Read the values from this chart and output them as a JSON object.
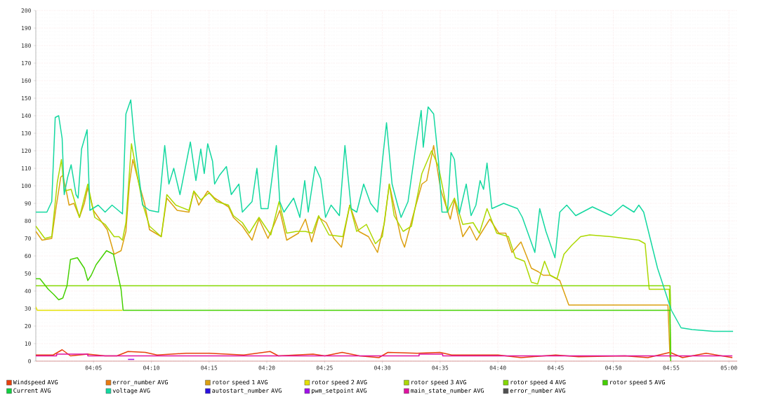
{
  "chart_data": {
    "type": "line",
    "xlim": [
      4.0,
      5.012
    ],
    "ylim": [
      0,
      200
    ],
    "xticks": [
      {
        "value": 4.0833,
        "label": "04:05"
      },
      {
        "value": 4.1667,
        "label": "04:10"
      },
      {
        "value": 4.25,
        "label": "04:15"
      },
      {
        "value": 4.3333,
        "label": "04:20"
      },
      {
        "value": 4.4167,
        "label": "04:25"
      },
      {
        "value": 4.5,
        "label": "04:30"
      },
      {
        "value": 4.5833,
        "label": "04:35"
      },
      {
        "value": 4.6667,
        "label": "04:40"
      },
      {
        "value": 4.75,
        "label": "04:45"
      },
      {
        "value": 4.8333,
        "label": "04:50"
      },
      {
        "value": 4.9167,
        "label": "04:55"
      },
      {
        "value": 5.0,
        "label": "05:00"
      }
    ],
    "yticks": [
      0,
      10,
      20,
      30,
      40,
      50,
      60,
      70,
      80,
      90,
      100,
      110,
      120,
      130,
      140,
      150,
      160,
      170,
      180,
      190,
      200
    ],
    "grid": true,
    "legend": "bottom",
    "marker": "none",
    "line_style": "solid",
    "series": [
      {
        "name": "Windspeed AVG",
        "color": "#e8400c",
        "x": [
          4.0,
          4.025,
          4.038,
          4.05,
          4.075,
          4.1,
          4.117,
          4.133,
          4.158,
          4.175,
          4.217,
          4.25,
          4.3,
          4.338,
          4.35,
          4.4,
          4.417,
          4.442,
          4.467,
          4.495,
          4.508,
          4.55,
          4.583,
          4.6,
          4.667,
          4.7,
          4.75,
          4.783,
          4.85,
          4.883,
          4.915,
          4.933,
          4.967,
          5.005
        ],
        "values": [
          3.5,
          3.5,
          6.5,
          3,
          4,
          3,
          3,
          5.5,
          5,
          3.5,
          4.5,
          4.5,
          3.5,
          5.5,
          3,
          4,
          3,
          5,
          3,
          2,
          5,
          4.5,
          5,
          3.5,
          3.5,
          2,
          3.5,
          2.5,
          3,
          2,
          5,
          2,
          4.5,
          2
        ]
      },
      {
        "name": "error_number AVG",
        "color": "#ea7a10"
      },
      {
        "name": "rotor speed 1 AVG",
        "color": "#dca010",
        "x": [
          4.0,
          4.009,
          4.023,
          4.029,
          4.036,
          4.039,
          4.045,
          4.048,
          4.055,
          4.063,
          4.07,
          4.075,
          4.083,
          4.103,
          4.113,
          4.123,
          4.13,
          4.135,
          4.14,
          4.149,
          4.157,
          4.164,
          4.181,
          4.189,
          4.204,
          4.221,
          4.228,
          4.235,
          4.248,
          4.258,
          4.278,
          4.285,
          4.298,
          4.312,
          4.322,
          4.335,
          4.345,
          4.352,
          4.362,
          4.379,
          4.389,
          4.398,
          4.408,
          4.419,
          4.43,
          4.441,
          4.453,
          4.466,
          4.48,
          4.493,
          4.503,
          4.51,
          4.527,
          4.532,
          4.547,
          4.557,
          4.564,
          4.574,
          4.584,
          4.598,
          4.604,
          4.616,
          4.626,
          4.636,
          4.655,
          4.668,
          4.678,
          4.687,
          4.7,
          4.715,
          4.725,
          4.732,
          4.742,
          4.756,
          4.769,
          4.912,
          4.915
        ],
        "values": [
          74,
          69,
          70,
          87,
          105,
          106,
          95,
          89,
          90,
          82,
          90,
          99,
          86,
          75,
          61,
          63,
          74,
          101,
          115,
          101,
          90,
          75,
          71,
          93,
          86,
          85,
          97,
          89,
          97,
          93,
          88,
          82,
          77,
          69,
          81,
          70,
          79,
          86,
          69,
          73,
          81,
          68,
          82,
          79,
          70,
          65,
          89,
          74,
          71,
          62,
          79,
          101,
          70,
          65,
          87,
          101,
          103,
          123,
          98,
          81,
          92,
          71,
          77,
          69,
          81,
          73,
          73,
          62,
          68,
          53,
          51,
          49,
          49,
          46,
          32,
          32,
          2
        ]
      },
      {
        "name": "rotor speed 2 AVG",
        "color": "#e4e000",
        "x": [
          4.0,
          4.002,
          4.125
        ],
        "values": [
          31,
          29,
          29
        ]
      },
      {
        "name": "rotor speed 3 AVG",
        "color": "#acd800",
        "x": [
          4.0,
          4.013,
          4.023,
          4.031,
          4.037,
          4.041,
          4.051,
          4.063,
          4.075,
          4.085,
          4.1,
          4.113,
          4.12,
          4.125,
          4.13,
          4.138,
          4.144,
          4.154,
          4.164,
          4.181,
          4.189,
          4.202,
          4.221,
          4.228,
          4.238,
          4.25,
          4.261,
          4.278,
          4.285,
          4.298,
          4.308,
          4.322,
          4.339,
          4.351,
          4.362,
          4.376,
          4.389,
          4.399,
          4.408,
          4.423,
          4.443,
          4.453,
          4.463,
          4.477,
          4.49,
          4.5,
          4.51,
          4.517,
          4.53,
          4.542,
          4.557,
          4.571,
          4.581,
          4.594,
          4.604,
          4.616,
          4.631,
          4.64,
          4.651,
          4.665,
          4.682,
          4.692,
          4.705,
          4.715,
          4.724,
          4.734,
          4.742,
          4.752,
          4.762,
          4.773,
          4.786,
          4.799,
          4.83,
          4.87,
          4.879,
          4.885,
          4.914,
          4.916
        ],
        "values": [
          77,
          70,
          71,
          102,
          115,
          97,
          98,
          82,
          101,
          82,
          78,
          71,
          71,
          69,
          79,
          124,
          111,
          90,
          77,
          71,
          95,
          89,
          86,
          97,
          92,
          96,
          91,
          89,
          83,
          79,
          73,
          82,
          72,
          91,
          73,
          74,
          74,
          73,
          83,
          72,
          71,
          89,
          74,
          78,
          67,
          71,
          101,
          83,
          74,
          77,
          107,
          120,
          111,
          85,
          93,
          78,
          79,
          73,
          87,
          73,
          71,
          59,
          57,
          45,
          44,
          57,
          49,
          47,
          61,
          66,
          71,
          72,
          71,
          69,
          67,
          41,
          41,
          2
        ]
      },
      {
        "name": "rotor speed 4 AVG",
        "color": "#84d800",
        "x": [
          4.0,
          4.915,
          4.916
        ],
        "values": [
          43,
          43,
          29
        ]
      },
      {
        "name": "rotor speed 5 AVG",
        "color": "#44d000",
        "x": [
          4.0,
          4.006,
          4.018,
          4.026,
          4.033,
          4.039,
          4.045,
          4.05,
          4.06,
          4.07,
          4.075,
          4.08,
          4.087,
          4.102,
          4.112,
          4.118,
          4.123,
          4.126,
          4.915,
          4.916
        ],
        "values": [
          47,
          47,
          41,
          38,
          35,
          36,
          43,
          58,
          59,
          53,
          46,
          49,
          55,
          63,
          61,
          50,
          41,
          29,
          29,
          0
        ]
      },
      {
        "name": "Current AVG",
        "color": "#10d040"
      },
      {
        "name": "voltage AVG",
        "color": "#14d8a0",
        "x": [
          4.0,
          4.016,
          4.023,
          4.028,
          4.033,
          4.038,
          4.041,
          4.046,
          4.051,
          4.058,
          4.061,
          4.066,
          4.074,
          4.078,
          4.09,
          4.1,
          4.11,
          4.125,
          4.13,
          4.137,
          4.142,
          4.154,
          4.164,
          4.177,
          4.186,
          4.192,
          4.199,
          4.208,
          4.223,
          4.231,
          4.238,
          4.243,
          4.248,
          4.255,
          4.258,
          4.265,
          4.275,
          4.282,
          4.293,
          4.298,
          4.312,
          4.319,
          4.325,
          4.335,
          4.347,
          4.352,
          4.358,
          4.372,
          4.381,
          4.388,
          4.393,
          4.403,
          4.411,
          4.418,
          4.426,
          4.438,
          4.446,
          4.455,
          4.463,
          4.473,
          4.483,
          4.493,
          4.5,
          4.506,
          4.514,
          4.522,
          4.527,
          4.537,
          4.547,
          4.556,
          4.559,
          4.566,
          4.574,
          4.581,
          4.586,
          4.594,
          4.599,
          4.604,
          4.611,
          4.621,
          4.628,
          4.635,
          4.641,
          4.646,
          4.651,
          4.658,
          4.675,
          4.695,
          4.702,
          4.72,
          4.727,
          4.736,
          4.749,
          4.756,
          4.766,
          4.779,
          4.803,
          4.83,
          4.847,
          4.863,
          4.87,
          4.877,
          4.897,
          4.917,
          4.931,
          4.947,
          4.978,
          5.006
        ],
        "values": [
          85,
          85,
          91,
          139,
          140,
          127,
          95,
          105,
          112,
          95,
          93,
          121,
          132,
          86,
          89,
          85,
          89,
          84,
          141,
          149,
          127,
          89,
          86,
          85,
          123,
          101,
          110,
          95,
          125,
          103,
          121,
          107,
          124,
          114,
          101,
          106,
          111,
          95,
          101,
          85,
          91,
          110,
          87,
          87,
          123,
          91,
          85,
          93,
          82,
          103,
          85,
          111,
          104,
          82,
          89,
          83,
          123,
          87,
          85,
          101,
          90,
          85,
          114,
          136,
          101,
          89,
          82,
          91,
          119,
          143,
          122,
          145,
          141,
          114,
          85,
          85,
          119,
          115,
          84,
          101,
          83,
          89,
          103,
          98,
          113,
          87,
          90,
          87,
          82,
          62,
          87,
          74,
          59,
          85,
          89,
          83,
          88,
          83,
          89,
          85,
          89,
          85,
          53,
          29,
          19,
          18,
          17,
          17
        ]
      },
      {
        "name": "autostart_number AVG",
        "color": "#2a10e0"
      },
      {
        "name": "pwm_setpoint AVG",
        "color": "#a010e8",
        "x": [
          4.133,
          4.142
        ],
        "values": [
          1,
          1
        ]
      },
      {
        "name": "main_state_number AVG",
        "color": "#e010a0",
        "x": [
          4.0,
          4.03,
          4.03,
          4.075,
          4.075,
          4.553,
          4.553,
          4.587,
          4.587,
          5.005
        ],
        "values": [
          3,
          3,
          4,
          4,
          3,
          3,
          4,
          4,
          3,
          3
        ]
      },
      {
        "name": "error_number AVG",
        "color": "#505050"
      }
    ]
  }
}
